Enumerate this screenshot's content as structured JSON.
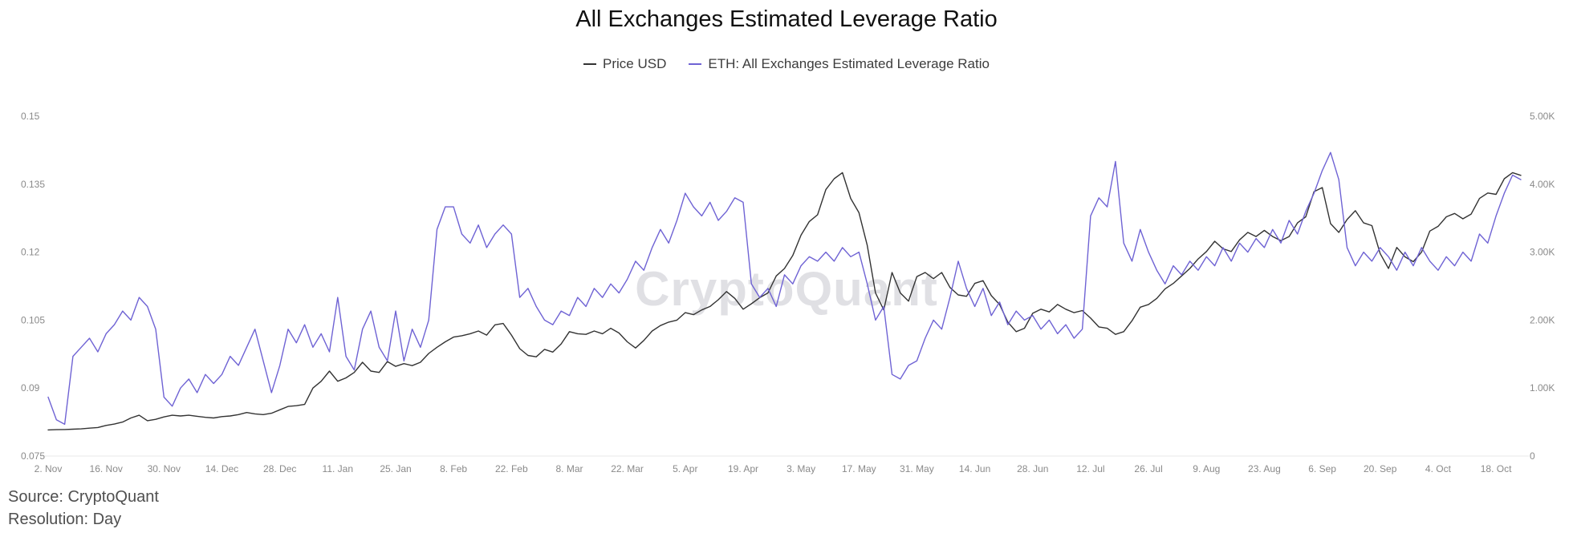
{
  "title": "All Exchanges Estimated Leverage Ratio",
  "legend": [
    {
      "label": "Price USD",
      "color": "#333333"
    },
    {
      "label": "ETH: All Exchanges Estimated Leverage Ratio",
      "color": "#6f63d4"
    }
  ],
  "watermark": "CryptoQuant",
  "footer": {
    "source": "Source: CryptoQuant",
    "resolution": "Resolution: Day"
  },
  "chart_data": {
    "type": "line",
    "title": "All Exchanges Estimated Leverage Ratio",
    "legend_position": "top-center",
    "grid": false,
    "x_tick_labels": [
      "2. Nov",
      "16. Nov",
      "30. Nov",
      "14. Dec",
      "28. Dec",
      "11. Jan",
      "25. Jan",
      "8. Feb",
      "22. Feb",
      "8. Mar",
      "22. Mar",
      "5. Apr",
      "19. Apr",
      "3. May",
      "17. May",
      "31. May",
      "14. Jun",
      "28. Jun",
      "12. Jul",
      "26. Jul",
      "9. Aug",
      "23. Aug",
      "6. Sep",
      "20. Sep",
      "4. Oct",
      "18. Oct"
    ],
    "x_tick_indices": [
      0,
      7,
      14,
      21,
      28,
      35,
      42,
      49,
      56,
      63,
      70,
      77,
      84,
      91,
      98,
      105,
      112,
      119,
      126,
      133,
      140,
      147,
      154,
      161,
      168,
      175
    ],
    "left_axis": {
      "ticks": [
        0.075,
        0.09,
        0.105,
        0.12,
        0.135,
        0.15
      ],
      "labels": [
        "0.075",
        "0.09",
        "0.105",
        "0.12",
        "0.135",
        "0.15"
      ],
      "range": [
        0.075,
        0.15
      ]
    },
    "right_axis": {
      "ticks": [
        0,
        1000,
        2000,
        3000,
        4000,
        5000
      ],
      "labels": [
        "0",
        "1.00K",
        "2.00K",
        "3.00K",
        "4.00K",
        "5.00K"
      ],
      "range": [
        0,
        5000
      ]
    },
    "series": [
      {
        "name": "Price USD",
        "axis": "right",
        "color": "#333333",
        "values": [
          385,
          388,
          390,
          395,
          400,
          410,
          420,
          450,
          470,
          500,
          560,
          600,
          520,
          540,
          575,
          600,
          590,
          600,
          585,
          570,
          560,
          580,
          590,
          610,
          640,
          620,
          610,
          630,
          680,
          730,
          740,
          760,
          1000,
          1100,
          1250,
          1100,
          1150,
          1230,
          1380,
          1250,
          1230,
          1390,
          1320,
          1360,
          1330,
          1380,
          1510,
          1600,
          1680,
          1750,
          1770,
          1800,
          1840,
          1780,
          1930,
          1950,
          1780,
          1580,
          1480,
          1460,
          1570,
          1530,
          1650,
          1830,
          1800,
          1790,
          1840,
          1800,
          1880,
          1810,
          1680,
          1590,
          1700,
          1840,
          1920,
          1970,
          2000,
          2110,
          2080,
          2150,
          2200,
          2300,
          2420,
          2320,
          2160,
          2240,
          2330,
          2400,
          2650,
          2760,
          2950,
          3250,
          3450,
          3550,
          3920,
          4080,
          4170,
          3790,
          3580,
          3100,
          2400,
          2150,
          2700,
          2400,
          2280,
          2640,
          2700,
          2610,
          2700,
          2480,
          2370,
          2350,
          2540,
          2580,
          2360,
          2230,
          1970,
          1830,
          1880,
          2100,
          2160,
          2120,
          2230,
          2160,
          2110,
          2140,
          2030,
          1900,
          1880,
          1790,
          1830,
          1990,
          2190,
          2230,
          2320,
          2460,
          2540,
          2650,
          2760,
          2900,
          3010,
          3160,
          3050,
          3010,
          3180,
          3290,
          3230,
          3320,
          3230,
          3170,
          3230,
          3430,
          3520,
          3890,
          3950,
          3420,
          3290,
          3480,
          3610,
          3430,
          3390,
          2980,
          2760,
          3070,
          2930,
          2860,
          3000,
          3310,
          3380,
          3520,
          3570,
          3490,
          3560,
          3790,
          3870,
          3850,
          4080,
          4170,
          4130
        ]
      },
      {
        "name": "ETH: All Exchanges Estimated Leverage Ratio",
        "axis": "left",
        "color": "#6f63d4",
        "values": [
          0.088,
          0.083,
          0.082,
          0.097,
          0.099,
          0.101,
          0.098,
          0.102,
          0.104,
          0.107,
          0.105,
          0.11,
          0.108,
          0.103,
          0.088,
          0.086,
          0.09,
          0.092,
          0.089,
          0.093,
          0.091,
          0.093,
          0.097,
          0.095,
          0.099,
          0.103,
          0.096,
          0.089,
          0.095,
          0.103,
          0.1,
          0.104,
          0.099,
          0.102,
          0.098,
          0.11,
          0.097,
          0.094,
          0.103,
          0.107,
          0.099,
          0.096,
          0.107,
          0.096,
          0.103,
          0.099,
          0.105,
          0.125,
          0.13,
          0.13,
          0.124,
          0.122,
          0.126,
          0.121,
          0.124,
          0.126,
          0.124,
          0.11,
          0.112,
          0.108,
          0.105,
          0.104,
          0.107,
          0.106,
          0.11,
          0.108,
          0.112,
          0.11,
          0.113,
          0.111,
          0.114,
          0.118,
          0.116,
          0.121,
          0.125,
          0.122,
          0.127,
          0.133,
          0.13,
          0.128,
          0.131,
          0.127,
          0.129,
          0.132,
          0.131,
          0.113,
          0.11,
          0.112,
          0.108,
          0.115,
          0.113,
          0.117,
          0.119,
          0.118,
          0.12,
          0.118,
          0.121,
          0.119,
          0.12,
          0.113,
          0.105,
          0.108,
          0.093,
          0.092,
          0.095,
          0.096,
          0.101,
          0.105,
          0.103,
          0.11,
          0.118,
          0.112,
          0.108,
          0.112,
          0.106,
          0.109,
          0.104,
          0.107,
          0.105,
          0.106,
          0.103,
          0.105,
          0.102,
          0.104,
          0.101,
          0.103,
          0.128,
          0.132,
          0.13,
          0.14,
          0.122,
          0.118,
          0.125,
          0.12,
          0.116,
          0.113,
          0.117,
          0.115,
          0.118,
          0.116,
          0.119,
          0.117,
          0.121,
          0.118,
          0.122,
          0.12,
          0.123,
          0.121,
          0.125,
          0.122,
          0.127,
          0.124,
          0.129,
          0.133,
          0.138,
          0.142,
          0.136,
          0.121,
          0.117,
          0.12,
          0.118,
          0.121,
          0.119,
          0.116,
          0.12,
          0.117,
          0.121,
          0.118,
          0.116,
          0.119,
          0.117,
          0.12,
          0.118,
          0.124,
          0.122,
          0.128,
          0.133,
          0.137,
          0.136
        ]
      }
    ]
  }
}
